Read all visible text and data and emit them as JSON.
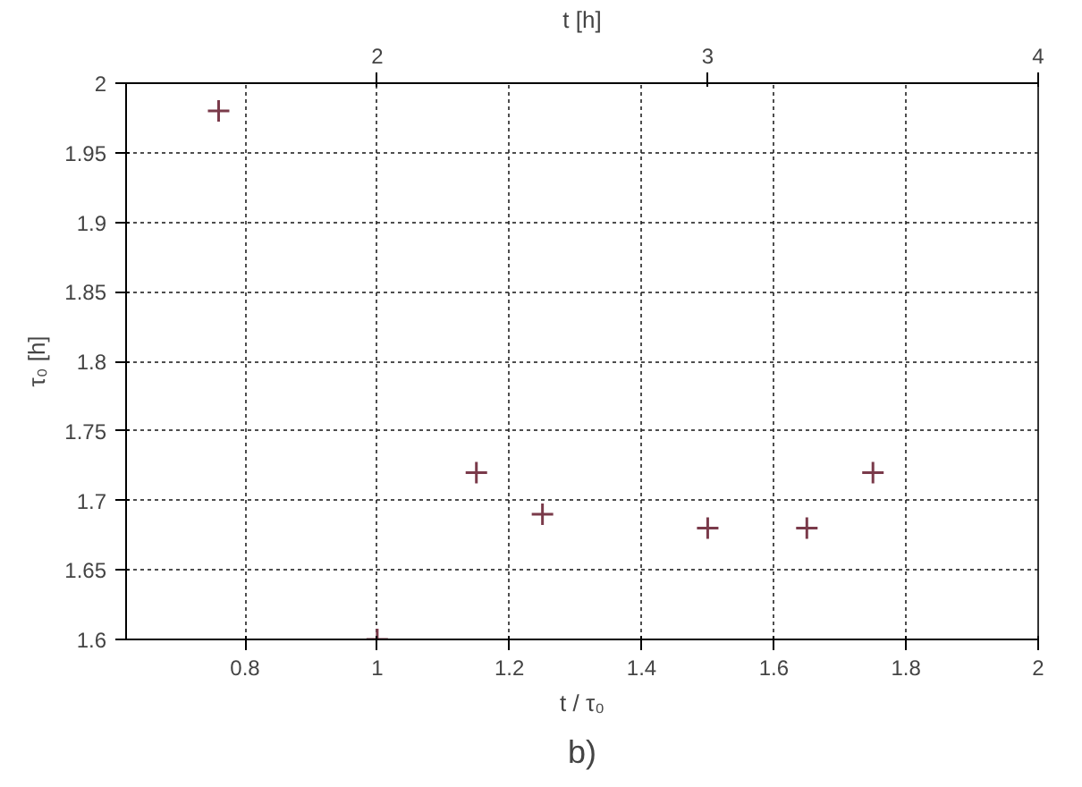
{
  "chart_data": {
    "type": "scatter",
    "xlabel": "t / τ₀",
    "ylabel": "τ₀ [h]",
    "x2label": "t [h]",
    "x": [
      0.76,
      1.0,
      1.15,
      1.25,
      1.5,
      1.65,
      1.75
    ],
    "values": [
      1.98,
      1.6,
      1.72,
      1.69,
      1.68,
      1.68,
      1.72
    ],
    "color": "#7a3a4a",
    "marker": "cross",
    "xlim": [
      0.62,
      2.0
    ],
    "xticks": [
      0.8,
      1,
      1.2,
      1.4,
      1.6,
      1.8,
      2
    ],
    "x2lim": [
      1.24,
      4.0
    ],
    "x2ticks": [
      2,
      3,
      4
    ],
    "ylim": [
      1.6,
      2.0
    ],
    "yticks": [
      1.6,
      1.65,
      1.7,
      1.75,
      1.8,
      1.85,
      1.9,
      1.95,
      2
    ],
    "grid": true,
    "annotations": [
      "b)"
    ]
  }
}
